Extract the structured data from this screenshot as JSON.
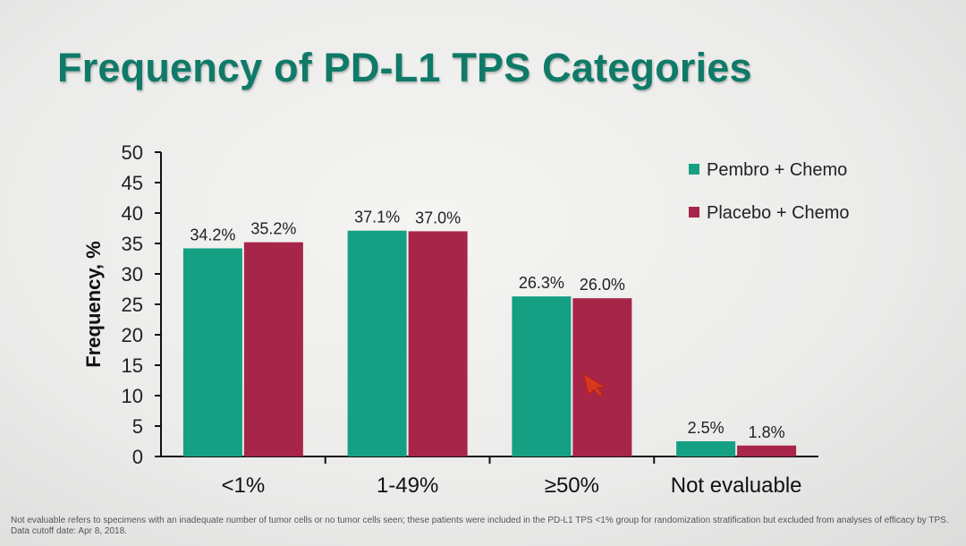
{
  "title": "Frequency of PD-L1 TPS Categories",
  "footnote": "Not evaluable refers to specimens with an inadequate number of tumor cells or no tumor cells seen; these patients were included in the PD-L1 TPS <1% group for randomization stratification but excluded from analyses of efficacy by TPS. Data cutoff date: Apr 8, 2018.",
  "colors": {
    "title": "#0f7a68",
    "pembro": "#16a083",
    "placebo": "#a8254a"
  },
  "chart_data": {
    "type": "bar",
    "title": "",
    "xlabel": "",
    "ylabel": "Frequency, %",
    "ylim": [
      0,
      50
    ],
    "yticks": [
      0,
      5,
      10,
      15,
      20,
      25,
      30,
      35,
      40,
      45,
      50
    ],
    "categories": [
      "<1%",
      "1-49%",
      "≥50%",
      "Not evaluable"
    ],
    "series": [
      {
        "name": "Pembro + Chemo",
        "color": "#16a083",
        "values": [
          34.2,
          37.1,
          26.3,
          2.5
        ],
        "labels": [
          "34.2%",
          "37.1%",
          "26.3%",
          "2.5%"
        ]
      },
      {
        "name": "Placebo + Chemo",
        "color": "#a8254a",
        "values": [
          35.2,
          37.0,
          26.0,
          1.8
        ],
        "labels": [
          "35.2%",
          "37.0%",
          "26.0%",
          "1.8%"
        ]
      }
    ],
    "legend": "top-right",
    "grid": false
  }
}
